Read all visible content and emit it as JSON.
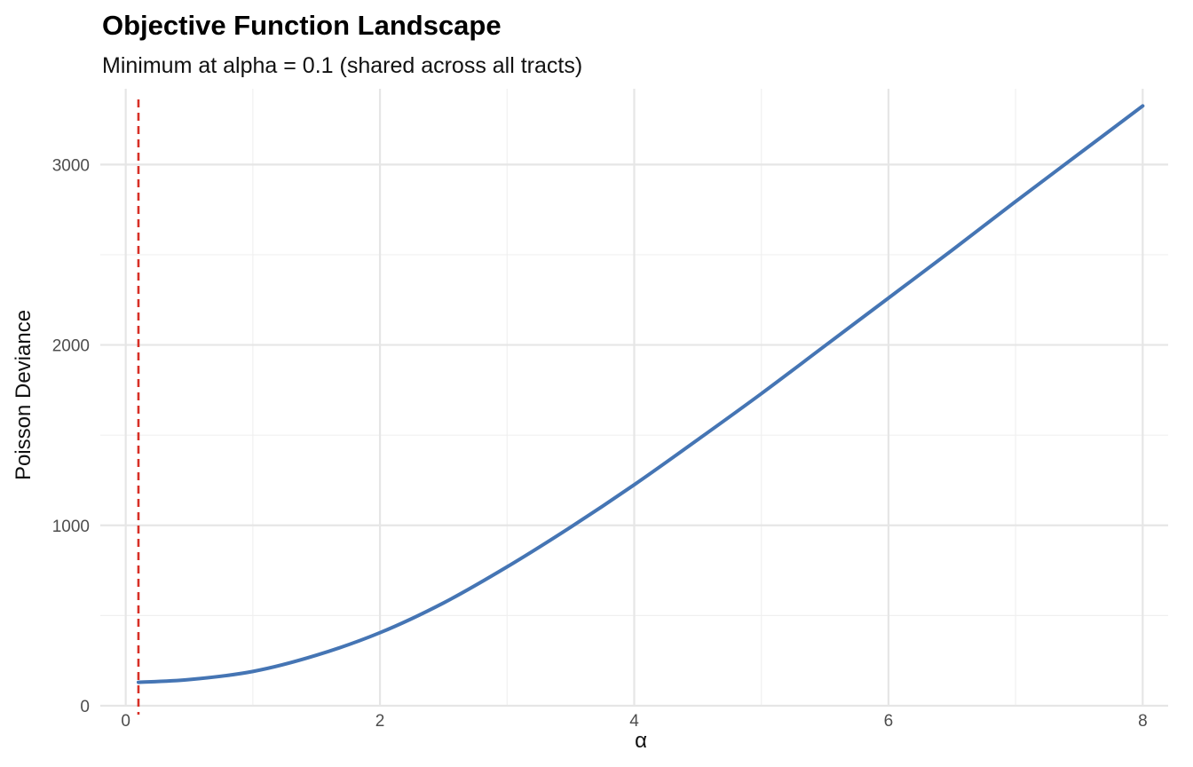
{
  "chart_data": {
    "type": "line",
    "title": "Objective Function Landscape",
    "subtitle": "Minimum at alpha = 0.1 (shared across all tracts)",
    "xlabel": "α",
    "ylabel": "Poisson Deviance",
    "xlim": [
      -0.2,
      8.2
    ],
    "ylim": [
      0,
      3420
    ],
    "x_ticks": [
      0,
      2,
      4,
      6,
      8
    ],
    "y_ticks": [
      0,
      1000,
      2000,
      3000
    ],
    "grid": true,
    "legend": "none",
    "series": [
      {
        "color": "#4575b4",
        "x": [
          0.1,
          0.5,
          1.0,
          1.5,
          2.0,
          2.5,
          3.0,
          3.5,
          4.0,
          4.5,
          5.0,
          5.5,
          6.0,
          6.5,
          7.0,
          7.5,
          8.0
        ],
        "y": [
          130,
          145,
          190,
          280,
          405,
          570,
          770,
          990,
          1225,
          1475,
          1730,
          1995,
          2260,
          2525,
          2795,
          3060,
          3325
        ]
      }
    ],
    "annotations": [
      {
        "type": "vline",
        "x": 0.1,
        "color": "#d73027",
        "linestyle": "dashed"
      }
    ]
  }
}
